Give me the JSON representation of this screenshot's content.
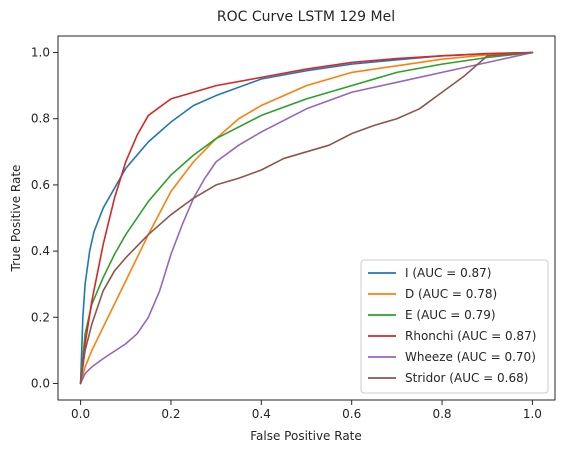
{
  "chart_data": {
    "type": "line",
    "title": "ROC Curve LSTM 129 Mel",
    "xlabel": "False Positive Rate",
    "ylabel": "True Positive Rate",
    "xlim": [
      -0.05,
      1.05
    ],
    "ylim": [
      -0.05,
      1.05
    ],
    "xticks": [
      "0.0",
      "0.2",
      "0.4",
      "0.6",
      "0.8",
      "1.0"
    ],
    "yticks": [
      "0.0",
      "0.2",
      "0.4",
      "0.6",
      "0.8",
      "1.0"
    ],
    "grid": false,
    "legend_position": "lower-right",
    "series": [
      {
        "name": "I (AUC = 0.87)",
        "color": "#1f77b4",
        "x": [
          0.0,
          0.005,
          0.01,
          0.02,
          0.03,
          0.05,
          0.075,
          0.1,
          0.15,
          0.2,
          0.25,
          0.3,
          0.4,
          0.5,
          0.6,
          0.7,
          0.8,
          0.9,
          1.0
        ],
        "y": [
          0.0,
          0.2,
          0.3,
          0.4,
          0.46,
          0.53,
          0.59,
          0.65,
          0.73,
          0.79,
          0.84,
          0.87,
          0.92,
          0.945,
          0.965,
          0.978,
          0.99,
          0.996,
          1.0
        ]
      },
      {
        "name": "D (AUC = 0.78)",
        "color": "#ff7f0e",
        "x": [
          0.0,
          0.01,
          0.025,
          0.05,
          0.075,
          0.1,
          0.15,
          0.2,
          0.25,
          0.3,
          0.35,
          0.4,
          0.5,
          0.6,
          0.7,
          0.8,
          0.9,
          1.0
        ],
        "y": [
          0.0,
          0.05,
          0.1,
          0.17,
          0.24,
          0.31,
          0.45,
          0.58,
          0.67,
          0.74,
          0.8,
          0.84,
          0.9,
          0.94,
          0.96,
          0.98,
          0.993,
          1.0
        ]
      },
      {
        "name": "E (AUC = 0.79)",
        "color": "#2ca02c",
        "x": [
          0.0,
          0.01,
          0.025,
          0.05,
          0.075,
          0.1,
          0.15,
          0.2,
          0.25,
          0.3,
          0.4,
          0.5,
          0.6,
          0.7,
          0.8,
          0.9,
          1.0
        ],
        "y": [
          0.0,
          0.15,
          0.24,
          0.32,
          0.39,
          0.45,
          0.55,
          0.63,
          0.69,
          0.74,
          0.81,
          0.86,
          0.9,
          0.94,
          0.965,
          0.985,
          1.0
        ]
      },
      {
        "name": "Rhonchi (AUC = 0.87)",
        "color": "#d62728",
        "x": [
          0.0,
          0.01,
          0.025,
          0.05,
          0.075,
          0.1,
          0.125,
          0.15,
          0.2,
          0.25,
          0.3,
          0.4,
          0.5,
          0.6,
          0.7,
          0.8,
          0.9,
          1.0
        ],
        "y": [
          0.0,
          0.12,
          0.25,
          0.42,
          0.56,
          0.67,
          0.75,
          0.81,
          0.86,
          0.88,
          0.9,
          0.925,
          0.95,
          0.97,
          0.982,
          0.99,
          0.997,
          1.0
        ]
      },
      {
        "name": "Wheeze (AUC = 0.70)",
        "color": "#9467bd",
        "x": [
          0.0,
          0.01,
          0.025,
          0.05,
          0.1,
          0.125,
          0.15,
          0.175,
          0.2,
          0.225,
          0.25,
          0.275,
          0.3,
          0.35,
          0.4,
          0.5,
          0.6,
          0.7,
          0.8,
          0.9,
          1.0
        ],
        "y": [
          0.0,
          0.03,
          0.05,
          0.075,
          0.12,
          0.15,
          0.2,
          0.28,
          0.39,
          0.48,
          0.56,
          0.62,
          0.67,
          0.72,
          0.76,
          0.83,
          0.88,
          0.91,
          0.94,
          0.97,
          1.0
        ]
      },
      {
        "name": "Stridor (AUC = 0.68)",
        "color": "#8c564b",
        "x": [
          0.0,
          0.01,
          0.025,
          0.05,
          0.075,
          0.1,
          0.15,
          0.2,
          0.25,
          0.3,
          0.35,
          0.4,
          0.45,
          0.5,
          0.55,
          0.6,
          0.65,
          0.7,
          0.75,
          0.8,
          0.85,
          0.9,
          1.0
        ],
        "y": [
          0.0,
          0.1,
          0.18,
          0.28,
          0.34,
          0.38,
          0.45,
          0.51,
          0.56,
          0.6,
          0.62,
          0.645,
          0.68,
          0.7,
          0.72,
          0.755,
          0.78,
          0.8,
          0.83,
          0.88,
          0.93,
          0.99,
          1.0
        ]
      }
    ]
  }
}
